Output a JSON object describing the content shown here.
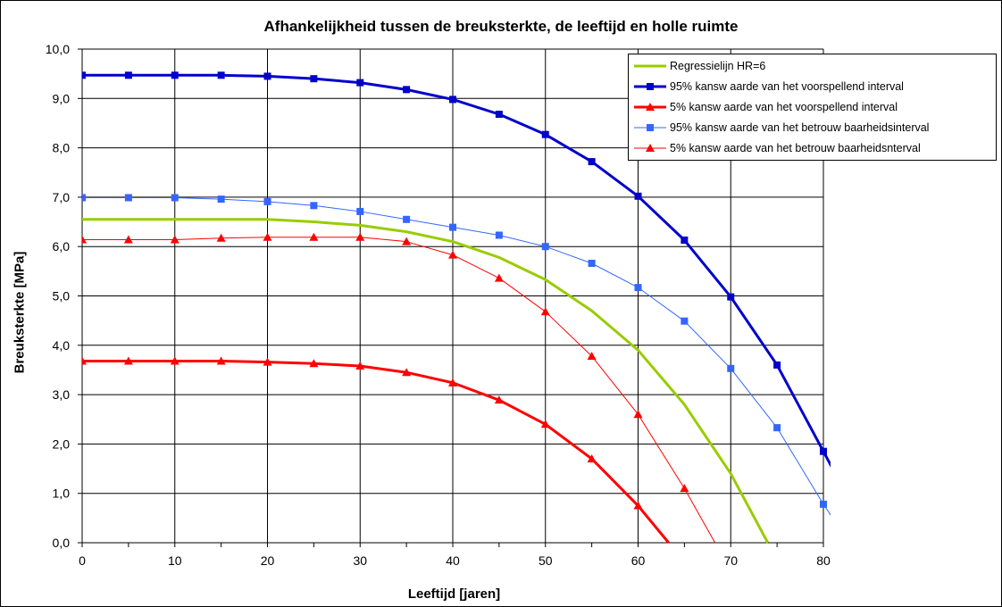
{
  "chart_data": {
    "type": "line",
    "title": "Afhankelijkheid tussen de breuksterkte, de leeftijd en holle ruimte",
    "xlabel": "Leeftijd [jaren]",
    "ylabel": "Breuksterkte [MPa]",
    "xlim": [
      0,
      80
    ],
    "ylim": [
      0,
      10
    ],
    "x_ticks": [
      "0",
      "10",
      "20",
      "30",
      "40",
      "50",
      "60",
      "70",
      "80"
    ],
    "y_ticks": [
      "0,0",
      "1,0",
      "2,0",
      "3,0",
      "4,0",
      "5,0",
      "6,0",
      "7,0",
      "8,0",
      "9,0",
      "10,0"
    ],
    "grid": true,
    "legend_position": "top-right",
    "series": [
      {
        "name": "Regressielijn HR=6",
        "color": "#99cc00",
        "marker": "none",
        "linewidth": "thick",
        "x": [
          0,
          5,
          10,
          15,
          20,
          25,
          30,
          35,
          40,
          45,
          50,
          55,
          60,
          65,
          70,
          74
        ],
        "y": [
          6.55,
          6.55,
          6.55,
          6.55,
          6.55,
          6.5,
          6.43,
          6.3,
          6.1,
          5.78,
          5.33,
          4.7,
          3.9,
          2.8,
          1.4,
          0.0
        ]
      },
      {
        "name": "95% kansw aarde van het voorspellend interval",
        "color": "#0000cc",
        "marker": "square",
        "linewidth": "thick",
        "x": [
          0,
          5,
          10,
          15,
          20,
          25,
          30,
          35,
          40,
          45,
          50,
          55,
          60,
          65,
          70,
          75,
          80,
          81
        ],
        "y": [
          9.47,
          9.47,
          9.47,
          9.47,
          9.45,
          9.4,
          9.32,
          9.18,
          8.98,
          8.68,
          8.27,
          7.72,
          7.02,
          6.13,
          4.98,
          3.6,
          1.85,
          1.5
        ]
      },
      {
        "name": "5% kansw aarde van het voorspellend interval",
        "color": "#ff0000",
        "marker": "triangle",
        "linewidth": "thick",
        "x": [
          0,
          5,
          10,
          15,
          20,
          25,
          30,
          35,
          40,
          45,
          50,
          55,
          60,
          63.3
        ],
        "y": [
          3.68,
          3.68,
          3.68,
          3.68,
          3.66,
          3.63,
          3.58,
          3.45,
          3.24,
          2.89,
          2.4,
          1.7,
          0.75,
          0.0
        ]
      },
      {
        "name": "95% kansw aarde van het betrouw baarheidsinterval",
        "color": "#3366ff",
        "marker": "square",
        "linewidth": "thin",
        "x": [
          0,
          5,
          10,
          15,
          20,
          25,
          30,
          35,
          40,
          45,
          50,
          55,
          60,
          65,
          70,
          75,
          80,
          81
        ],
        "y": [
          6.99,
          6.99,
          6.99,
          6.96,
          6.91,
          6.83,
          6.71,
          6.55,
          6.39,
          6.23,
          6.0,
          5.66,
          5.17,
          4.49,
          3.53,
          2.33,
          0.78,
          0.5
        ]
      },
      {
        "name": "5% kansw aarde van het betrouw baarheidsnterval",
        "color": "#ff0000",
        "marker": "triangle",
        "linewidth": "thin",
        "x": [
          0,
          5,
          10,
          15,
          20,
          25,
          30,
          35,
          40,
          45,
          50,
          55,
          60,
          65,
          68.3
        ],
        "y": [
          6.14,
          6.14,
          6.14,
          6.17,
          6.19,
          6.19,
          6.19,
          6.1,
          5.83,
          5.36,
          4.68,
          3.78,
          2.6,
          1.1,
          0.0
        ]
      }
    ]
  }
}
